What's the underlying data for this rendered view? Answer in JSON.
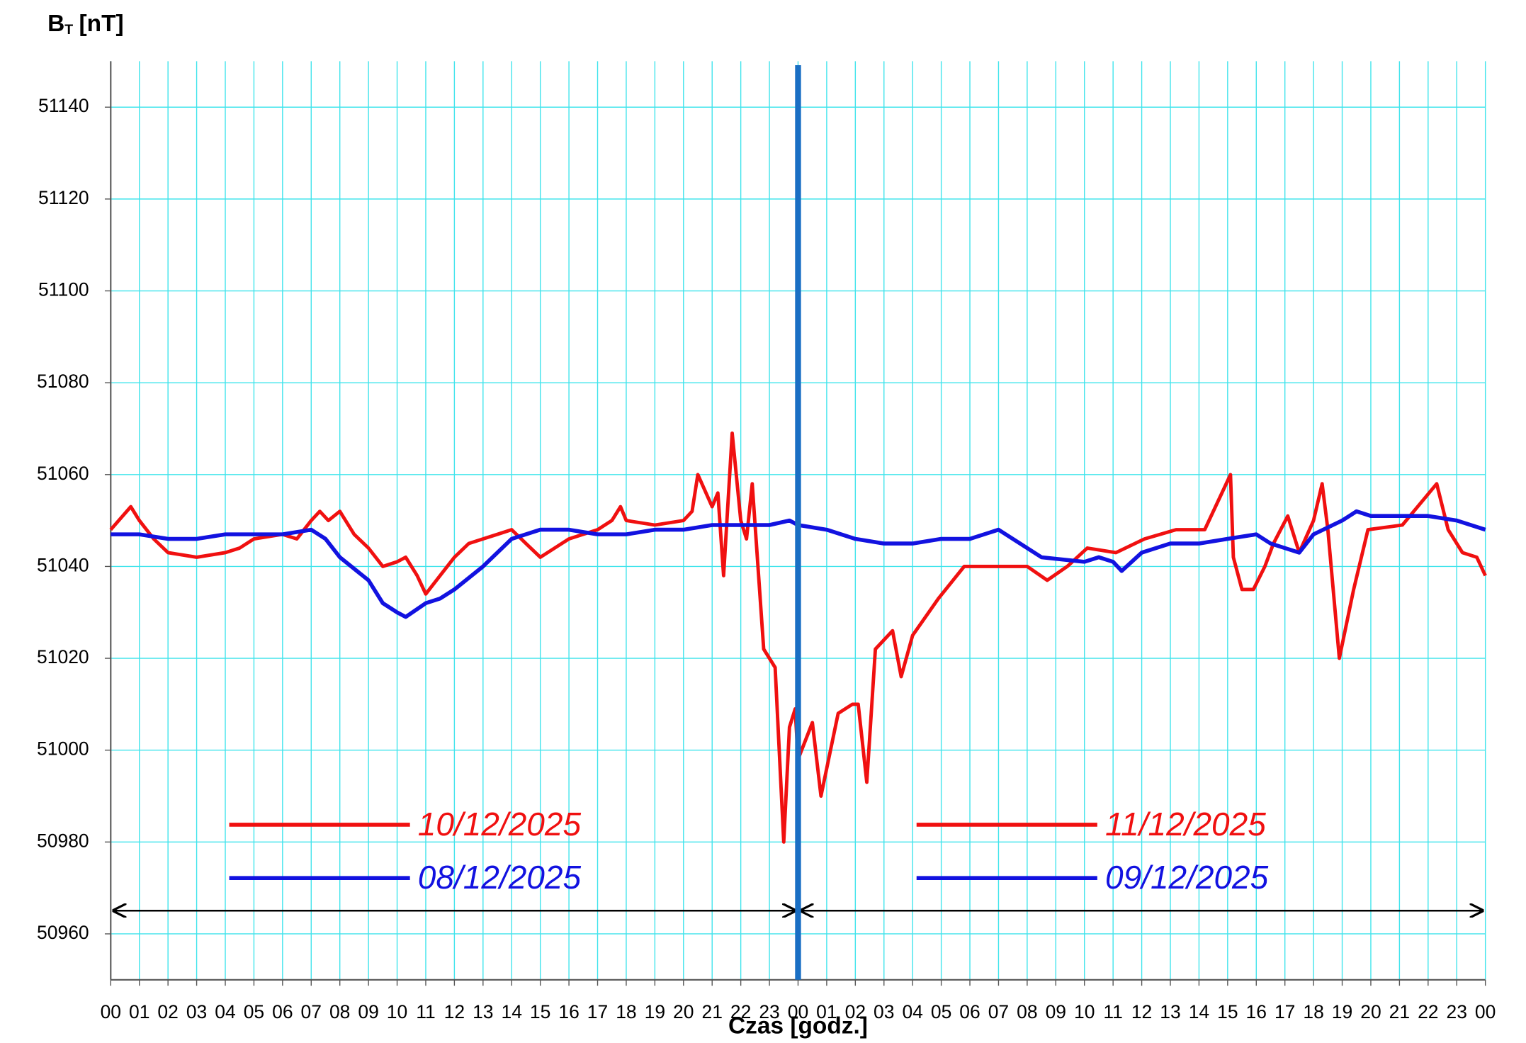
{
  "chart_data": {
    "type": "line",
    "y_label": {
      "main": "B",
      "sub": "T",
      "unit": "[nT]"
    },
    "x_label": "Czas [godz.]",
    "xlim": [
      0,
      48
    ],
    "ylim": [
      50950,
      51150
    ],
    "yticks": [
      50960,
      50980,
      51000,
      51020,
      51040,
      51060,
      51080,
      51100,
      51120,
      51140
    ],
    "xticks": [
      {
        "value": 0,
        "label": "00"
      },
      {
        "value": 1,
        "label": "01"
      },
      {
        "value": 2,
        "label": "02"
      },
      {
        "value": 3,
        "label": "03"
      },
      {
        "value": 4,
        "label": "04"
      },
      {
        "value": 5,
        "label": "05"
      },
      {
        "value": 6,
        "label": "06"
      },
      {
        "value": 7,
        "label": "07"
      },
      {
        "value": 8,
        "label": "08"
      },
      {
        "value": 9,
        "label": "09"
      },
      {
        "value": 10,
        "label": "10"
      },
      {
        "value": 11,
        "label": "11"
      },
      {
        "value": 12,
        "label": "12"
      },
      {
        "value": 13,
        "label": "13"
      },
      {
        "value": 14,
        "label": "14"
      },
      {
        "value": 15,
        "label": "15"
      },
      {
        "value": 16,
        "label": "16"
      },
      {
        "value": 17,
        "label": "17"
      },
      {
        "value": 18,
        "label": "18"
      },
      {
        "value": 19,
        "label": "19"
      },
      {
        "value": 20,
        "label": "20"
      },
      {
        "value": 21,
        "label": "21"
      },
      {
        "value": 22,
        "label": "22"
      },
      {
        "value": 23,
        "label": "23"
      },
      {
        "value": 24,
        "label": "00"
      },
      {
        "value": 25,
        "label": "01"
      },
      {
        "value": 26,
        "label": "02"
      },
      {
        "value": 27,
        "label": "03"
      },
      {
        "value": 28,
        "label": "04"
      },
      {
        "value": 29,
        "label": "05"
      },
      {
        "value": 30,
        "label": "06"
      },
      {
        "value": 31,
        "label": "07"
      },
      {
        "value": 32,
        "label": "08"
      },
      {
        "value": 33,
        "label": "09"
      },
      {
        "value": 34,
        "label": "10"
      },
      {
        "value": 35,
        "label": "11"
      },
      {
        "value": 36,
        "label": "12"
      },
      {
        "value": 37,
        "label": "13"
      },
      {
        "value": 38,
        "label": "14"
      },
      {
        "value": 39,
        "label": "15"
      },
      {
        "value": 40,
        "label": "16"
      },
      {
        "value": 41,
        "label": "17"
      },
      {
        "value": 42,
        "label": "18"
      },
      {
        "value": 43,
        "label": "19"
      },
      {
        "value": 44,
        "label": "20"
      },
      {
        "value": 45,
        "label": "21"
      },
      {
        "value": 46,
        "label": "22"
      },
      {
        "value": 47,
        "label": "23"
      },
      {
        "value": 48,
        "label": "00"
      }
    ],
    "grid": true,
    "divider": 24,
    "divider_color": "#1a6fc4",
    "series": [
      {
        "name": "10/12/2025",
        "color": "#f01010",
        "x": [
          0,
          0.7,
          1,
          1.5,
          2,
          3,
          4,
          4.5,
          5,
          6,
          6.5,
          7,
          7.3,
          7.6,
          8,
          8.5,
          9,
          9.5,
          10,
          10.3,
          10.7,
          11,
          11.5,
          12,
          12.5,
          13,
          13.5,
          14,
          14.5,
          15,
          15.5,
          16,
          17,
          17.5,
          17.8,
          18,
          19,
          20,
          20.3,
          20.5,
          21,
          21.2,
          21.4,
          21.7,
          22,
          22.2,
          22.4,
          22.6,
          22.8,
          23.2,
          23.5,
          23.7,
          23.9,
          24
        ],
        "values": [
          51048,
          51053,
          51050,
          51046,
          51043,
          51042,
          51043,
          51044,
          51046,
          51047,
          51046,
          51050,
          51052,
          51050,
          51052,
          51047,
          51044,
          51040,
          51041,
          51042,
          51038,
          51034,
          51038,
          51042,
          51045,
          51046,
          51047,
          51048,
          51045,
          51042,
          51044,
          51046,
          51048,
          51050,
          51053,
          51050,
          51049,
          51050,
          51052,
          51060,
          51053,
          51056,
          51038,
          51069,
          51050,
          51046,
          51058,
          51040,
          51022,
          51018,
          50980,
          51005,
          51009,
          50998
        ]
      },
      {
        "name": "08/12/2025",
        "color": "#1212e0",
        "x": [
          0,
          1,
          2,
          3,
          4,
          5,
          6,
          7,
          7.5,
          8,
          9,
          9.5,
          10,
          10.3,
          11,
          11.5,
          12,
          13,
          14,
          15,
          16,
          17,
          18,
          19,
          20,
          21,
          22,
          23,
          23.7,
          24
        ],
        "values": [
          51047,
          51047,
          51046,
          51046,
          51047,
          51047,
          51047,
          51048,
          51046,
          51042,
          51037,
          51032,
          51030,
          51029,
          51032,
          51033,
          51035,
          51040,
          51046,
          51048,
          51048,
          51047,
          51047,
          51048,
          51048,
          51049,
          51049,
          51049,
          51050,
          51049
        ]
      },
      {
        "name": "11/12/2025",
        "color": "#f01010",
        "x": [
          24,
          24.5,
          24.8,
          25.4,
          25.9,
          26.1,
          26.4,
          26.7,
          27.3,
          27.6,
          28,
          28.9,
          29.8,
          32,
          32.7,
          33.4,
          34.1,
          35.1,
          36.1,
          37.2,
          38.2,
          39.1,
          39.2,
          39.5,
          39.9,
          40.3,
          40.6,
          41.1,
          41.5,
          42,
          42.3,
          42.5,
          42.9,
          43.4,
          43.9,
          45.1,
          46.3,
          46.7,
          47.2,
          47.7,
          48
        ],
        "values": [
          50998,
          51006,
          50990,
          51008,
          51010,
          51010,
          50993,
          51022,
          51026,
          51016,
          51025,
          51033,
          51040,
          51040,
          51037,
          51040,
          51044,
          51043,
          51046,
          51048,
          51048,
          51060,
          51042,
          51035,
          51035,
          51040,
          51045,
          51051,
          51043,
          51050,
          51058,
          51048,
          51020,
          51035,
          51048,
          51049,
          51058,
          51048,
          51043,
          51042,
          51038
        ]
      },
      {
        "name": "09/12/2025",
        "color": "#1212e0",
        "x": [
          24,
          25,
          26,
          27,
          28,
          29,
          30,
          31,
          32.5,
          34,
          34.5,
          35,
          35.3,
          36,
          36.5,
          37,
          37.5,
          38,
          39,
          40,
          40.5,
          41,
          41.5,
          42,
          43,
          43.5,
          44,
          45,
          46,
          47,
          48
        ],
        "values": [
          51049,
          51048,
          51046,
          51045,
          51045,
          51046,
          51046,
          51048,
          51042,
          51041,
          51042,
          51041,
          51039,
          51043,
          51044,
          51045,
          51045,
          51045,
          51046,
          51047,
          51045,
          51044,
          51043,
          51047,
          51050,
          51052,
          51051,
          51051,
          51051,
          51050,
          51048
        ]
      }
    ]
  }
}
